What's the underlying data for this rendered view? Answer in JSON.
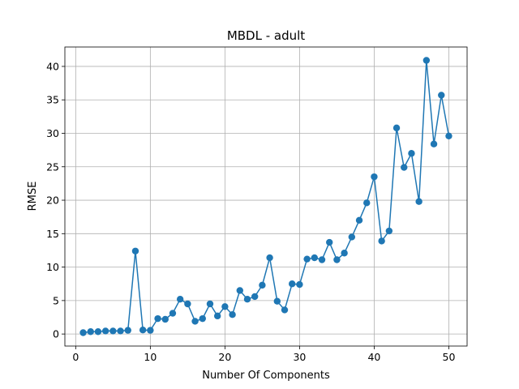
{
  "chart_data": {
    "type": "line",
    "title": "MBDL - adult",
    "xlabel": "Number Of Components",
    "ylabel": "RMSE",
    "xlim": [
      -1.45,
      52.45
    ],
    "ylim": [
      -1.8,
      42.9
    ],
    "xticks": [
      0,
      10,
      20,
      30,
      40,
      50
    ],
    "yticks": [
      0,
      5,
      10,
      15,
      20,
      25,
      30,
      35,
      40
    ],
    "grid": true,
    "marker": "circle",
    "color": "#1f77b4",
    "series": [
      {
        "x": [
          1,
          2,
          3,
          4,
          5,
          6,
          7,
          8,
          9,
          10,
          11,
          12,
          13,
          14,
          15,
          16,
          17,
          18,
          19,
          20,
          21,
          22,
          23,
          24,
          25,
          26,
          27,
          28,
          29,
          30,
          31,
          32,
          33,
          34,
          35,
          36,
          37,
          38,
          39,
          40,
          41,
          42,
          43,
          44,
          45,
          46,
          47,
          48,
          49,
          50
        ],
        "y": [
          0.2,
          0.35,
          0.35,
          0.45,
          0.45,
          0.45,
          0.55,
          12.4,
          0.6,
          0.55,
          2.3,
          2.2,
          3.1,
          5.2,
          4.5,
          1.9,
          2.3,
          4.5,
          2.7,
          4.1,
          2.9,
          6.5,
          5.2,
          5.6,
          7.3,
          11.4,
          4.9,
          3.6,
          7.5,
          7.4,
          11.2,
          11.4,
          11.1,
          13.7,
          11.1,
          12.1,
          14.5,
          17.0,
          19.6,
          23.5,
          13.9,
          15.4,
          30.8,
          24.9,
          27.0,
          19.8,
          40.9,
          28.4,
          35.7,
          29.6
        ]
      }
    ]
  }
}
